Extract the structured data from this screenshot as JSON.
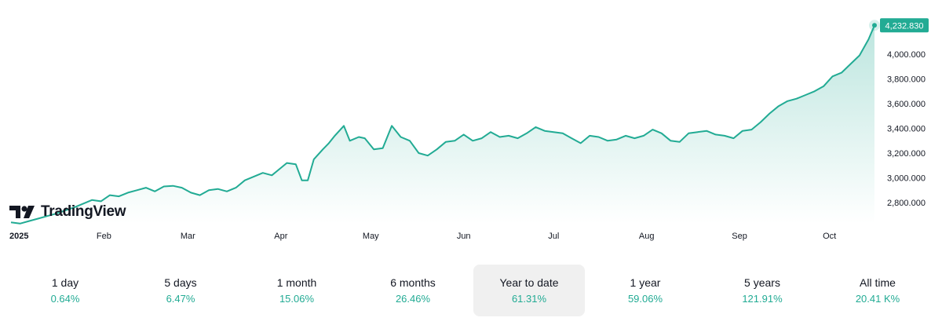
{
  "logo": {
    "text": "TradingView",
    "icon": "tradingview-logo-icon"
  },
  "chart_data": {
    "type": "area",
    "title": "",
    "xlabel": "",
    "ylabel": "",
    "ylim": [
      2700,
      4300
    ],
    "y_ticks": [
      2800,
      3000,
      3200,
      3400,
      3600,
      3800,
      4000
    ],
    "y_tick_labels": [
      "2,800.000",
      "3,000.000",
      "3,200.000",
      "3,400.000",
      "3,600.000",
      "3,800.000",
      "4,000.000"
    ],
    "x_ticks": [
      {
        "label": "2025",
        "date": "2025-01-01",
        "bold": true
      },
      {
        "label": "Feb",
        "date": "2025-02-01"
      },
      {
        "label": "Mar",
        "date": "2025-03-01"
      },
      {
        "label": "Apr",
        "date": "2025-04-01"
      },
      {
        "label": "May",
        "date": "2025-05-01"
      },
      {
        "label": "Jun",
        "date": "2025-06-01"
      },
      {
        "label": "Jul",
        "date": "2025-07-01"
      },
      {
        "label": "Aug",
        "date": "2025-08-01"
      },
      {
        "label": "Sep",
        "date": "2025-09-01"
      },
      {
        "label": "Oct",
        "date": "2025-10-01"
      }
    ],
    "x_range": [
      "2025-01-01",
      "2025-10-16"
    ],
    "grid": false,
    "line_color": "#22ab94",
    "last_value_label": "4,232.830",
    "last_value": 4232.83,
    "series": [
      {
        "x": [
          "2025-01-01",
          "2025-01-04",
          "2025-01-07",
          "2025-01-10",
          "2025-01-13",
          "2025-01-16",
          "2025-01-19",
          "2025-01-22",
          "2025-01-25",
          "2025-01-28",
          "2025-01-31",
          "2025-02-03",
          "2025-02-06",
          "2025-02-09",
          "2025-02-12",
          "2025-02-15",
          "2025-02-18",
          "2025-02-21",
          "2025-02-24",
          "2025-02-27",
          "2025-03-02",
          "2025-03-05",
          "2025-03-08",
          "2025-03-11",
          "2025-03-14",
          "2025-03-17",
          "2025-03-20",
          "2025-03-23",
          "2025-03-26",
          "2025-03-29",
          "2025-04-01",
          "2025-04-03",
          "2025-04-06",
          "2025-04-08",
          "2025-04-10",
          "2025-04-12",
          "2025-04-15",
          "2025-04-17",
          "2025-04-19",
          "2025-04-22",
          "2025-04-24",
          "2025-04-27",
          "2025-04-29",
          "2025-05-02",
          "2025-05-05",
          "2025-05-08",
          "2025-05-11",
          "2025-05-14",
          "2025-05-17",
          "2025-05-20",
          "2025-05-23",
          "2025-05-26",
          "2025-05-29",
          "2025-06-01",
          "2025-06-04",
          "2025-06-07",
          "2025-06-10",
          "2025-06-13",
          "2025-06-16",
          "2025-06-19",
          "2025-06-22",
          "2025-06-25",
          "2025-06-28",
          "2025-07-01",
          "2025-07-04",
          "2025-07-07",
          "2025-07-10",
          "2025-07-13",
          "2025-07-16",
          "2025-07-19",
          "2025-07-22",
          "2025-07-25",
          "2025-07-28",
          "2025-07-31",
          "2025-08-03",
          "2025-08-06",
          "2025-08-09",
          "2025-08-12",
          "2025-08-15",
          "2025-08-18",
          "2025-08-21",
          "2025-08-24",
          "2025-08-27",
          "2025-08-30",
          "2025-09-02",
          "2025-09-05",
          "2025-09-08",
          "2025-09-11",
          "2025-09-14",
          "2025-09-17",
          "2025-09-20",
          "2025-09-23",
          "2025-09-26",
          "2025-09-29",
          "2025-10-02",
          "2025-10-05",
          "2025-10-08",
          "2025-10-11",
          "2025-10-14",
          "2025-10-16"
        ],
        "y": [
          2640,
          2630,
          2650,
          2670,
          2690,
          2710,
          2735,
          2760,
          2790,
          2820,
          2810,
          2860,
          2850,
          2880,
          2900,
          2920,
          2890,
          2930,
          2935,
          2920,
          2880,
          2860,
          2900,
          2910,
          2890,
          2920,
          2980,
          3010,
          3040,
          3020,
          3080,
          3120,
          3110,
          2980,
          2980,
          3150,
          3230,
          3280,
          3340,
          3420,
          3300,
          3330,
          3320,
          3230,
          3240,
          3420,
          3330,
          3300,
          3200,
          3180,
          3230,
          3290,
          3300,
          3350,
          3300,
          3320,
          3370,
          3330,
          3340,
          3320,
          3360,
          3410,
          3380,
          3370,
          3360,
          3320,
          3280,
          3340,
          3330,
          3300,
          3310,
          3340,
          3320,
          3340,
          3390,
          3360,
          3300,
          3290,
          3360,
          3370,
          3380,
          3350,
          3340,
          3320,
          3380,
          3390,
          3450,
          3520,
          3580,
          3620,
          3640,
          3670,
          3700,
          3740,
          3820,
          3850,
          3920,
          3990,
          4120,
          4232.83
        ]
      }
    ]
  },
  "periods": [
    {
      "label": "1 day",
      "value": "0.64%",
      "active": false
    },
    {
      "label": "5 days",
      "value": "6.47%",
      "active": false
    },
    {
      "label": "1 month",
      "value": "15.06%",
      "active": false
    },
    {
      "label": "6 months",
      "value": "26.46%",
      "active": false
    },
    {
      "label": "Year to date",
      "value": "61.31%",
      "active": true
    },
    {
      "label": "1 year",
      "value": "59.06%",
      "active": false
    },
    {
      "label": "5 years",
      "value": "121.91%",
      "active": false
    },
    {
      "label": "All time",
      "value": "20.41 K%",
      "active": false
    }
  ]
}
